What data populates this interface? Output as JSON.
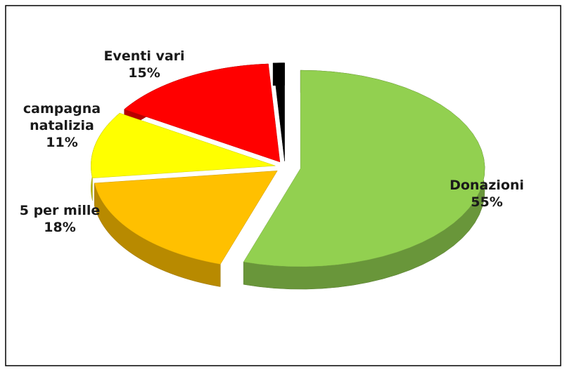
{
  "chart_data": {
    "type": "pie3d",
    "categories": [
      "Donazioni",
      "5 per mille",
      "campagna natalizia",
      "Eventi vari",
      null
    ],
    "values": [
      55,
      18,
      11,
      15,
      1
    ],
    "value_labels": [
      "55%",
      "18%",
      "11%",
      "15%",
      null
    ],
    "colors": [
      "#92d050",
      "#ffc000",
      "#ffff00",
      "#ff0000",
      "#000000"
    ]
  }
}
